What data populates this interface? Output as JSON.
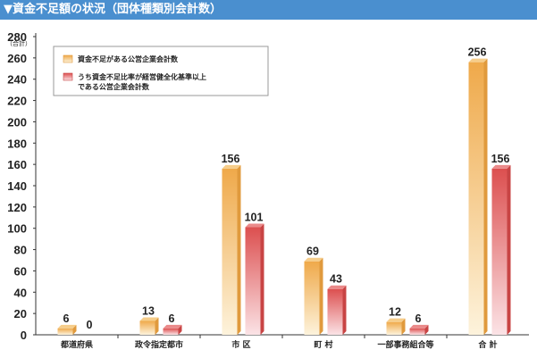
{
  "title": "▼資金不足額の状況（団体種類別会計数）",
  "chart_data": {
    "type": "bar",
    "ylabel": "（合計）",
    "ylim": [
      0,
      280
    ],
    "ytick_step": 20,
    "grid": false,
    "legend_position": "top-left",
    "categories": [
      "都道府県",
      "政令指定都市",
      "市 区",
      "町 村",
      "一部事務組合等",
      "合 計"
    ],
    "series": [
      {
        "name": "資金不足がある公営企業会計数",
        "values": [
          6,
          13,
          156,
          69,
          12,
          256
        ],
        "color": "#f0b55a"
      },
      {
        "name": "うち資金不足比率が経営健全化基準以上である公営企業会計数",
        "values": [
          0,
          6,
          101,
          43,
          6,
          156
        ],
        "color": "#de5a58"
      }
    ],
    "legend": [
      {
        "lines": [
          "資金不足がある公営企業会計数"
        ]
      },
      {
        "lines": [
          "うち資金不足比率が経営健全化基準以上",
          "である公営企業会計数"
        ]
      }
    ]
  }
}
